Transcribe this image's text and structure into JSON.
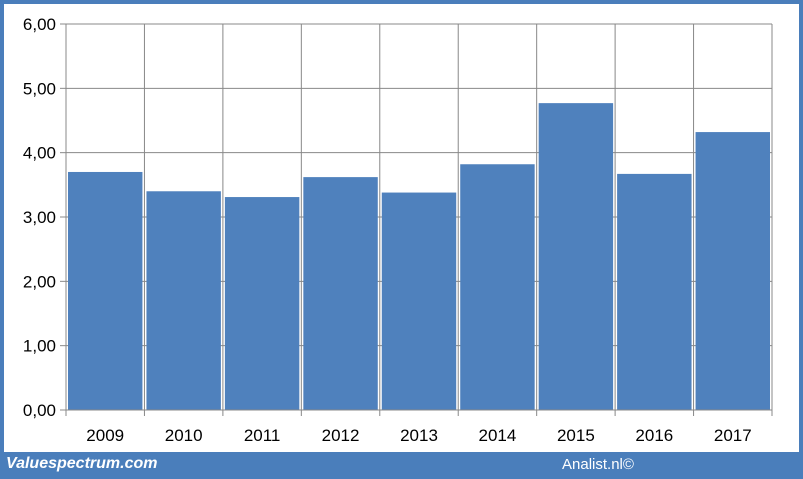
{
  "chart_data": {
    "type": "bar",
    "title": "",
    "xlabel": "",
    "ylabel": "",
    "categories": [
      "2009",
      "2010",
      "2011",
      "2012",
      "2013",
      "2014",
      "2015",
      "2016",
      "2017"
    ],
    "values": [
      3.7,
      3.4,
      3.31,
      3.62,
      3.38,
      3.82,
      4.77,
      3.67,
      4.32
    ],
    "ylim": [
      0,
      6
    ],
    "y_ticks": [
      "0,00",
      "1,00",
      "2,00",
      "3,00",
      "4,00",
      "5,00",
      "6,00"
    ],
    "grid": true,
    "legend": "none",
    "bar_color": "#4f81bd"
  },
  "footer": {
    "left": "Valuespectrum.com",
    "right": "Analist.nl©"
  },
  "colors": {
    "border": "#4a7ebb",
    "grid": "#888888"
  }
}
